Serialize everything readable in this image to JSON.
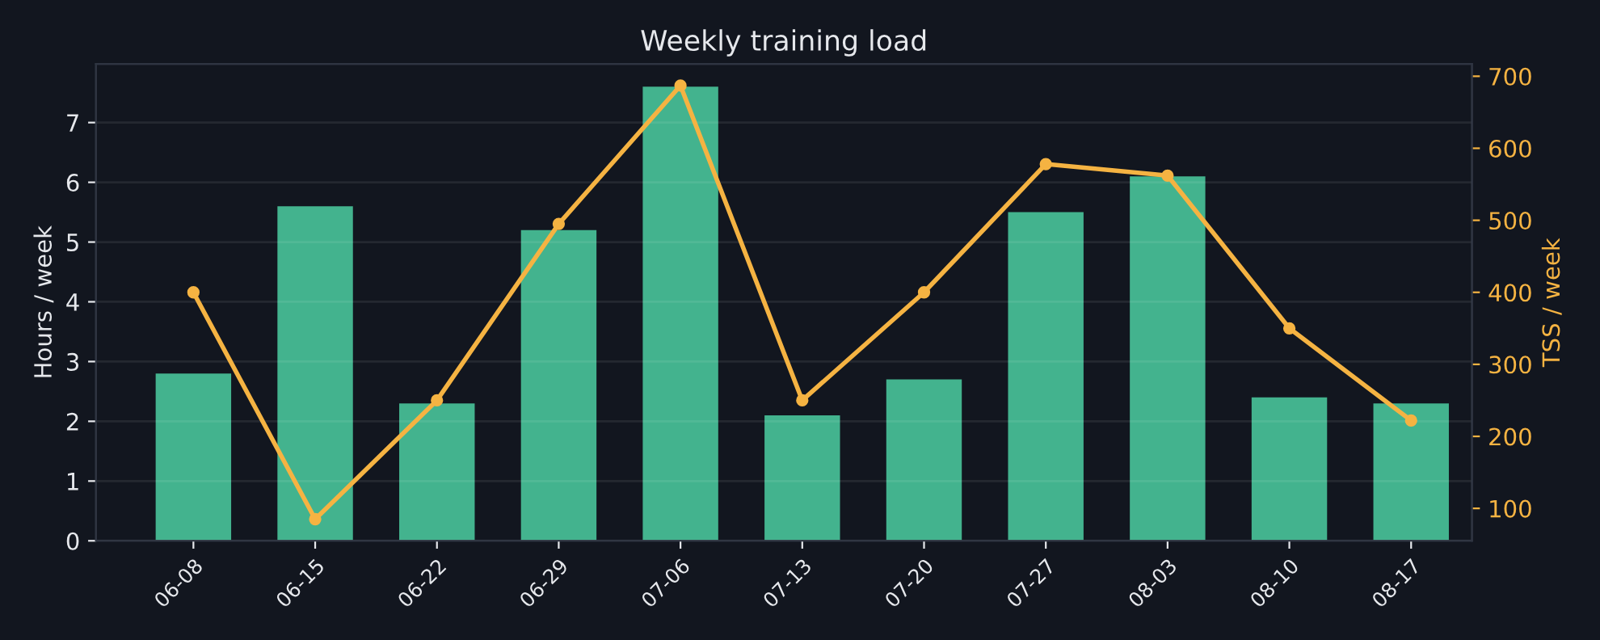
{
  "chart_data": {
    "type": "bar",
    "title": "Weekly training load",
    "ylabel": "Hours / week",
    "y2label": "TSS / week",
    "categories": [
      "06-08",
      "06-15",
      "06-22",
      "06-29",
      "07-06",
      "07-13",
      "07-20",
      "07-27",
      "08-03",
      "08-10",
      "08-17"
    ],
    "series": [
      {
        "color": "#43b38e",
        "values": [
          2.8,
          5.6,
          2.3,
          5.2,
          7.6,
          2.1,
          2.7,
          5.5,
          6.1,
          2.4,
          2.3
        ]
      },
      {
        "type": "line",
        "axis": "y2",
        "color": "#f5b342",
        "marker": "circle",
        "values": [
          400,
          85,
          250,
          495,
          687,
          250,
          400,
          578,
          562,
          350,
          222
        ]
      }
    ],
    "ylim": [
      0,
      7.98
    ],
    "yticks": [
      0,
      1,
      2,
      3,
      4,
      5,
      6,
      7
    ],
    "y2lim": [
      55,
      717
    ],
    "y2ticks": [
      100,
      200,
      300,
      400,
      500,
      600,
      700
    ],
    "grid": "y",
    "legend": false
  }
}
